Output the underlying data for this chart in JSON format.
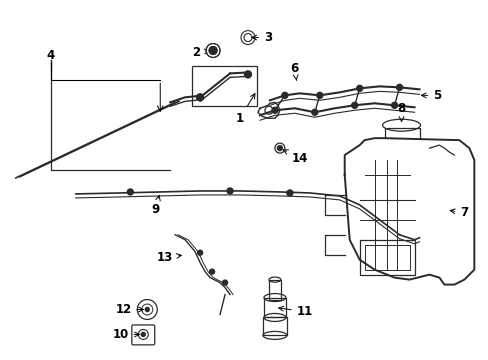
{
  "bg_color": "#ffffff",
  "line_color": "#2a2a2a",
  "label_color": "#000000",
  "figsize": [
    4.89,
    3.6
  ],
  "dpi": 100,
  "xlim": [
    0,
    489
  ],
  "ylim": [
    0,
    360
  ]
}
